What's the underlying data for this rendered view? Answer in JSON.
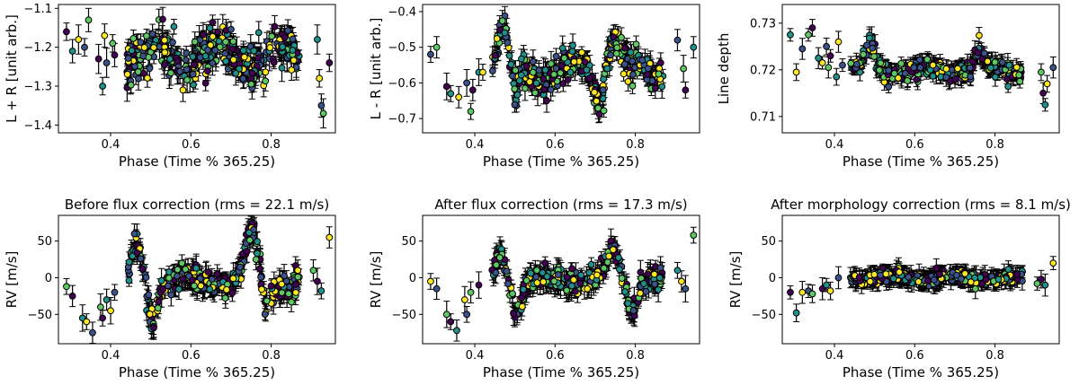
{
  "figure": {
    "colormap": [
      "#440154",
      "#3b528b",
      "#21918c",
      "#5ec962",
      "#fde725"
    ],
    "marker_edge": "#000000"
  },
  "chart_data": [
    {
      "type": "scatter",
      "title": "",
      "xlabel": "Phase (Time % 365.25)",
      "ylabel": "L + R [unit arb.]",
      "xlim": [
        0.27,
        0.96
      ],
      "ylim": [
        -1.42,
        -1.09
      ],
      "xticks": [
        0.4,
        0.6,
        0.8
      ],
      "xtick_labels": [
        "0.4",
        "0.6",
        "0.8"
      ],
      "yticks": [
        -1.1,
        -1.2,
        -1.3,
        -1.4
      ],
      "ytick_labels": [
        "−1.1",
        "−1.2",
        "−1.3",
        "−1.4"
      ],
      "trend": {
        "center": -1.22,
        "amp": 0.03,
        "scatter": 0.05,
        "err": 0.025,
        "features": []
      },
      "sparse_points": [
        [
          0.29,
          -1.16
        ],
        [
          0.305,
          -1.21
        ],
        [
          0.32,
          -1.18
        ],
        [
          0.335,
          -1.2
        ],
        [
          0.345,
          -1.13
        ],
        [
          0.37,
          -1.23
        ],
        [
          0.38,
          -1.3
        ],
        [
          0.385,
          -1.17
        ],
        [
          0.39,
          -1.24
        ],
        [
          0.405,
          -1.19
        ],
        [
          0.41,
          -1.22
        ],
        [
          0.915,
          -1.18
        ],
        [
          0.92,
          -1.28
        ],
        [
          0.925,
          -1.35
        ],
        [
          0.93,
          -1.37
        ],
        [
          0.945,
          -1.24
        ]
      ]
    },
    {
      "type": "scatter",
      "title": "",
      "xlabel": "Phase (Time % 365.25)",
      "ylabel": "L - R [unit arb.]",
      "xlim": [
        0.27,
        0.96
      ],
      "ylim": [
        -0.74,
        -0.38
      ],
      "xticks": [
        0.4,
        0.6,
        0.8
      ],
      "xtick_labels": [
        "0.4",
        "0.6",
        "0.8"
      ],
      "yticks": [
        -0.4,
        -0.5,
        -0.6,
        -0.7
      ],
      "ytick_labels": [
        "−0.4",
        "−0.5",
        "−0.6",
        "−0.7"
      ],
      "trend": {
        "center": -0.565,
        "amp": 0.03,
        "scatter": 0.04,
        "err": 0.025,
        "features": [
          [
            0.47,
            -0.47,
            0.02
          ],
          [
            0.745,
            -0.46,
            0.02
          ],
          [
            0.5,
            -0.66,
            0.012
          ],
          [
            0.71,
            -0.64,
            0.015
          ]
        ]
      },
      "sparse_points": [
        [
          0.29,
          -0.52
        ],
        [
          0.305,
          -0.5
        ],
        [
          0.33,
          -0.61
        ],
        [
          0.34,
          -0.63
        ],
        [
          0.36,
          -0.64
        ],
        [
          0.38,
          -0.6
        ],
        [
          0.39,
          -0.68
        ],
        [
          0.395,
          -0.62
        ],
        [
          0.41,
          -0.57
        ],
        [
          0.42,
          -0.57
        ],
        [
          0.905,
          -0.48
        ],
        [
          0.92,
          -0.56
        ],
        [
          0.925,
          -0.62
        ],
        [
          0.945,
          -0.5
        ]
      ]
    },
    {
      "type": "scatter",
      "title": "",
      "xlabel": "Phase (Time % 365.25)",
      "ylabel": "Line depth",
      "xlim": [
        0.27,
        0.96
      ],
      "ylim": [
        0.7065,
        0.734
      ],
      "xticks": [
        0.4,
        0.6,
        0.8
      ],
      "xtick_labels": [
        "0.4",
        "0.6",
        "0.8"
      ],
      "yticks": [
        0.71,
        0.72,
        0.73
      ],
      "ytick_labels": [
        "0.71",
        "0.72",
        "0.73"
      ],
      "trend": {
        "center": 0.72,
        "amp": 0.0008,
        "scatter": 0.0018,
        "err": 0.0015,
        "features": [
          [
            0.49,
            0.7255,
            0.015
          ],
          [
            0.76,
            0.7235,
            0.015
          ]
        ]
      },
      "sparse_points": [
        [
          0.29,
          0.7275
        ],
        [
          0.305,
          0.7195
        ],
        [
          0.32,
          0.7245
        ],
        [
          0.335,
          0.7275
        ],
        [
          0.345,
          0.729
        ],
        [
          0.36,
          0.7225
        ],
        [
          0.37,
          0.7215
        ],
        [
          0.38,
          0.725
        ],
        [
          0.385,
          0.7205
        ],
        [
          0.39,
          0.723
        ],
        [
          0.405,
          0.7185
        ],
        [
          0.41,
          0.726
        ],
        [
          0.42,
          0.721
        ],
        [
          0.915,
          0.7195
        ],
        [
          0.92,
          0.715
        ],
        [
          0.925,
          0.7125
        ],
        [
          0.93,
          0.717
        ],
        [
          0.945,
          0.7205
        ]
      ]
    },
    {
      "type": "scatter",
      "title": "Before flux correction (rms = 22.1 m/s)",
      "xlabel": "Phase (Time % 365.25)",
      "ylabel": "RV [m/s]",
      "xlim": [
        0.27,
        0.96
      ],
      "ylim": [
        -90,
        85
      ],
      "xticks": [
        0.4,
        0.6,
        0.8
      ],
      "xtick_labels": [
        "0.4",
        "0.6",
        "0.8"
      ],
      "yticks": [
        50,
        0,
        -50
      ],
      "ytick_labels": [
        "50",
        "0",
        "−50"
      ],
      "trend": {
        "center": -5,
        "amp": 8,
        "scatter": 16,
        "err": 12,
        "features": [
          [
            0.465,
            40,
            0.018
          ],
          [
            0.505,
            -55,
            0.015
          ],
          [
            0.75,
            60,
            0.02
          ],
          [
            0.79,
            -35,
            0.015
          ]
        ]
      },
      "sparse_points": [
        [
          0.29,
          -12
        ],
        [
          0.305,
          -25
        ],
        [
          0.33,
          -55
        ],
        [
          0.34,
          -60
        ],
        [
          0.355,
          -75
        ],
        [
          0.375,
          -40
        ],
        [
          0.38,
          -55
        ],
        [
          0.39,
          -30
        ],
        [
          0.4,
          -45
        ],
        [
          0.41,
          -20
        ],
        [
          0.905,
          10
        ],
        [
          0.915,
          -5
        ],
        [
          0.925,
          -18
        ],
        [
          0.945,
          55
        ]
      ]
    },
    {
      "type": "scatter",
      "title": "After flux correction (rms = 17.3 m/s)",
      "xlabel": "Phase (Time % 365.25)",
      "ylabel": "RV [m/s]",
      "xlim": [
        0.27,
        0.96
      ],
      "ylim": [
        -90,
        85
      ],
      "xticks": [
        0.4,
        0.6,
        0.8
      ],
      "xtick_labels": [
        "0.4",
        "0.6",
        "0.8"
      ],
      "yticks": [
        50,
        0,
        -50
      ],
      "ytick_labels": [
        "50",
        "0",
        "−50"
      ],
      "trend": {
        "center": -3,
        "amp": 6,
        "scatter": 14,
        "err": 12,
        "features": [
          [
            0.465,
            35,
            0.018
          ],
          [
            0.505,
            -45,
            0.015
          ],
          [
            0.745,
            35,
            0.02
          ],
          [
            0.79,
            -45,
            0.015
          ]
        ]
      },
      "sparse_points": [
        [
          0.29,
          -5
        ],
        [
          0.305,
          -15
        ],
        [
          0.33,
          -50
        ],
        [
          0.34,
          -60
        ],
        [
          0.355,
          -72
        ],
        [
          0.375,
          -30
        ],
        [
          0.38,
          -50
        ],
        [
          0.39,
          -20
        ],
        [
          0.41,
          -10
        ],
        [
          0.905,
          10
        ],
        [
          0.915,
          -5
        ],
        [
          0.925,
          -15
        ],
        [
          0.945,
          58
        ]
      ]
    },
    {
      "type": "scatter",
      "title": "After morphology correction (rms = 8.1 m/s)",
      "xlabel": "Phase (Time % 365.25)",
      "ylabel": "RV [m/s]",
      "xlim": [
        0.27,
        0.96
      ],
      "ylim": [
        -90,
        85
      ],
      "xticks": [
        0.4,
        0.6,
        0.8
      ],
      "xtick_labels": [
        "0.4",
        "0.6",
        "0.8"
      ],
      "yticks": [
        50,
        0,
        -50
      ],
      "ytick_labels": [
        "50",
        "0",
        "−50"
      ],
      "trend": {
        "center": 0,
        "amp": 3,
        "scatter": 7,
        "err": 10,
        "features": []
      },
      "sparse_points": [
        [
          0.29,
          -20
        ],
        [
          0.305,
          -48
        ],
        [
          0.32,
          -20
        ],
        [
          0.335,
          -18
        ],
        [
          0.345,
          -22
        ],
        [
          0.37,
          -15
        ],
        [
          0.38,
          -10
        ],
        [
          0.39,
          -18
        ],
        [
          0.41,
          0
        ],
        [
          0.905,
          -8
        ],
        [
          0.915,
          -2
        ],
        [
          0.925,
          -10
        ],
        [
          0.945,
          20
        ]
      ]
    }
  ]
}
